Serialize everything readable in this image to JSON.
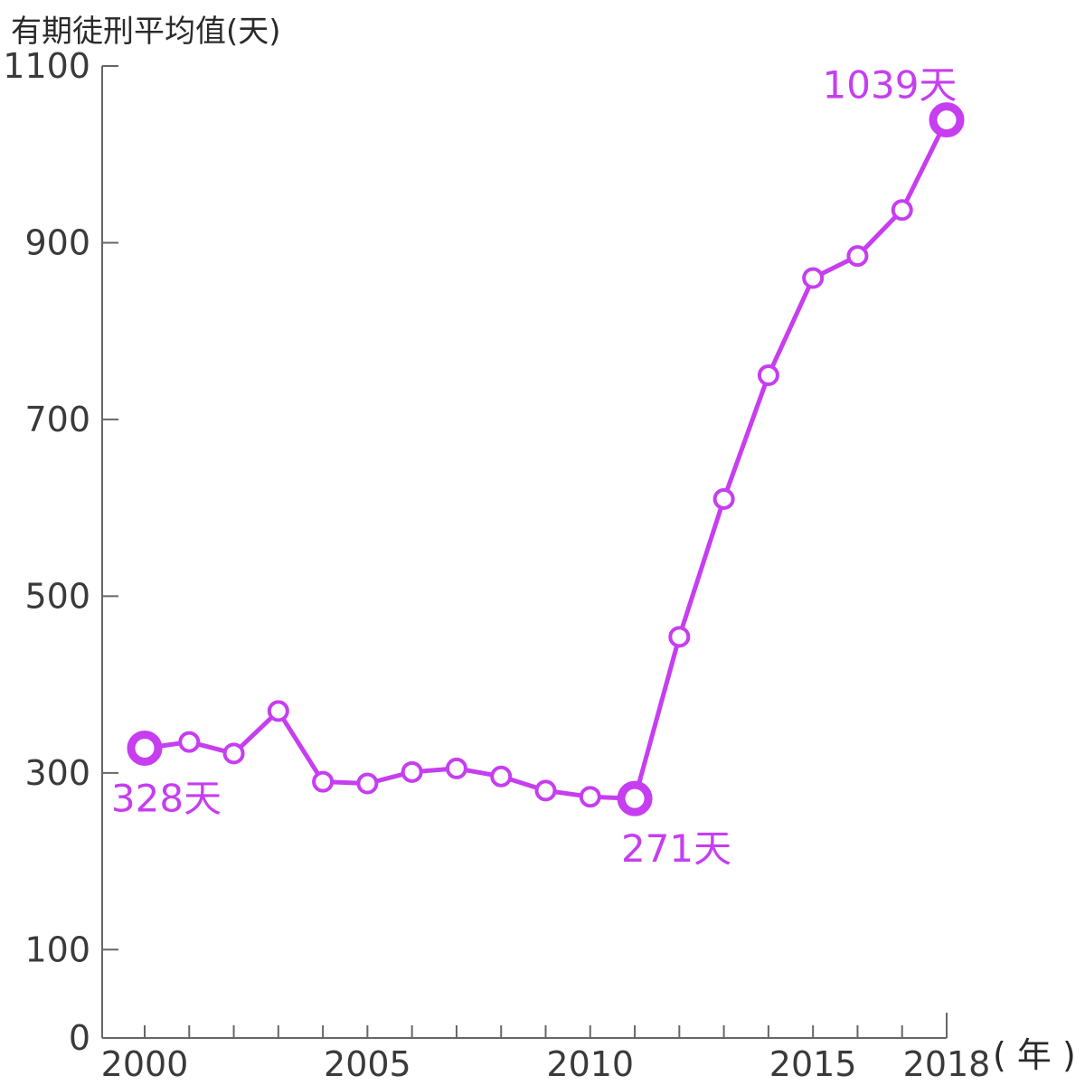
{
  "chart_data": {
    "type": "line",
    "title": "",
    "ylabel": "有期徒刑平均值(天)",
    "xlabel": "( 年 )",
    "ylim": [
      0,
      1100
    ],
    "xlim": [
      2000,
      2018
    ],
    "y_ticks": [
      0,
      100,
      300,
      500,
      700,
      900,
      1100
    ],
    "x_tick_labels": [
      2000,
      2005,
      2010,
      2015,
      2018
    ],
    "grid": false,
    "color": "#c63ef0",
    "series": [
      {
        "x": [
          2000,
          2001,
          2002,
          2003,
          2004,
          2005,
          2006,
          2007,
          2008,
          2009,
          2010,
          2011,
          2012,
          2013,
          2014,
          2015,
          2016,
          2017,
          2018
        ],
        "values": [
          328,
          335,
          322,
          370,
          290,
          288,
          301,
          305,
          296,
          280,
          273,
          271,
          454,
          610,
          750,
          860,
          885,
          937,
          1039
        ]
      }
    ],
    "annotations": [
      {
        "x": 2000,
        "y": 328,
        "text": "328天"
      },
      {
        "x": 2011,
        "y": 271,
        "text": "271天"
      },
      {
        "x": 2018,
        "y": 1039,
        "text": "1039天"
      }
    ]
  }
}
